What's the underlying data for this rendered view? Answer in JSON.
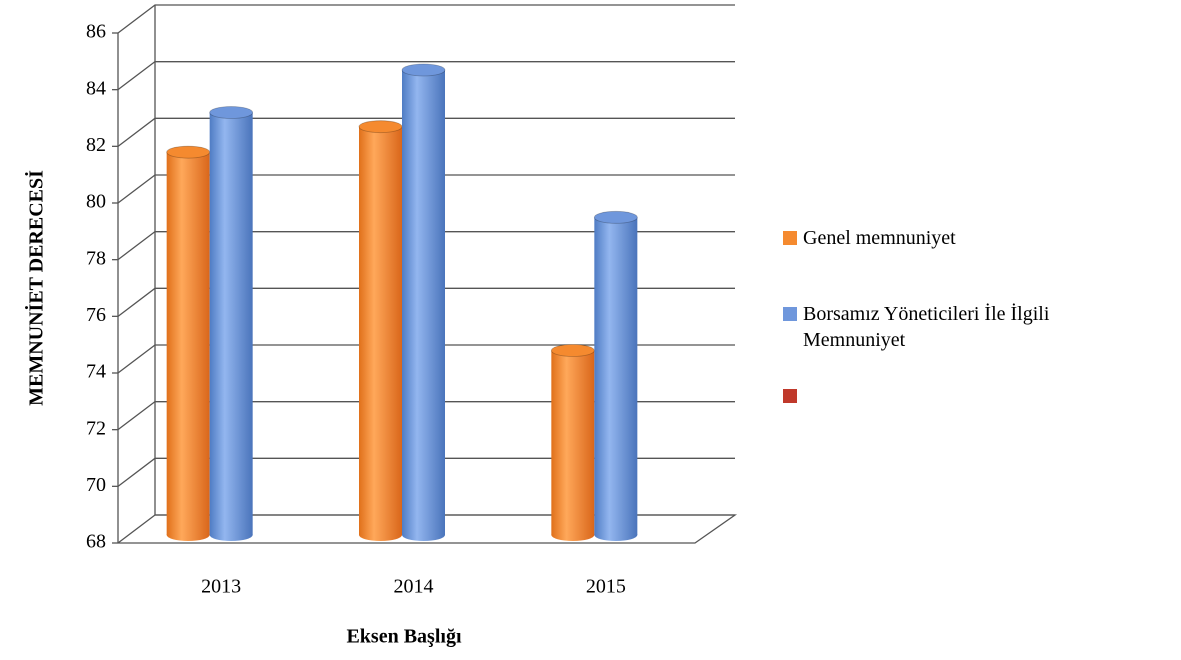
{
  "chart_data": {
    "type": "bar3d",
    "x_label": "Eksen Başlığı",
    "y_label": "MEMNUNİET DERECESİ",
    "categories": [
      "2013",
      "2014",
      "2015"
    ],
    "series": [
      {
        "name": "Genel memnuniyet",
        "color": "#f58a2f",
        "values": [
          81.3,
          82.2,
          74.3
        ]
      },
      {
        "name": "Borsamız Yöneticileri İle İlgili Memnuniyet",
        "color": "#6f97dc",
        "values": [
          82.7,
          84.2,
          79.0
        ]
      },
      {
        "name": null,
        "color": "#c0392b",
        "values": [
          null,
          null,
          null
        ]
      }
    ],
    "ylim": [
      68,
      86
    ],
    "yticks": [
      68,
      70,
      72,
      74,
      76,
      78,
      80,
      82,
      84,
      86
    ],
    "grid": true
  }
}
